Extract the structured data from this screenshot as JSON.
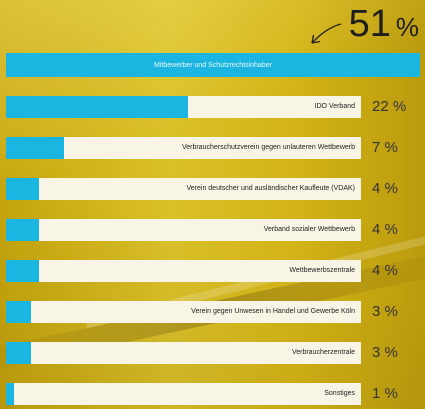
{
  "total": {
    "value": "51",
    "unit": "%"
  },
  "header": {
    "label": "Mitbewerber und Schutzrechtsinhaber"
  },
  "chart_data": {
    "type": "bar",
    "orientation": "horizontal",
    "categories": [
      "IDO Verband",
      "Verbraucherschutzverein gegen unlauteren Wettbewerb",
      "Verein deutscher und ausländischer Kaufleute (VDAK)",
      "Verband sozialer Wettbewerb",
      "Wettbewerbszentrale",
      "Verein gegen Unwesen in Handel und Gewerbe Köln",
      "Verbraucherzentrale",
      "Sonstiges"
    ],
    "values": [
      22,
      7,
      4,
      4,
      4,
      3,
      3,
      1
    ],
    "value_labels": [
      "22 %",
      "7 %",
      "4 %",
      "4 %",
      "4 %",
      "3 %",
      "3 %",
      "1 %"
    ],
    "unit": "%",
    "xlim": [
      0,
      43
    ]
  },
  "colors": {
    "bar": "#1bb5e2",
    "track": "#f8f4e6",
    "background": "#e3c21d"
  }
}
